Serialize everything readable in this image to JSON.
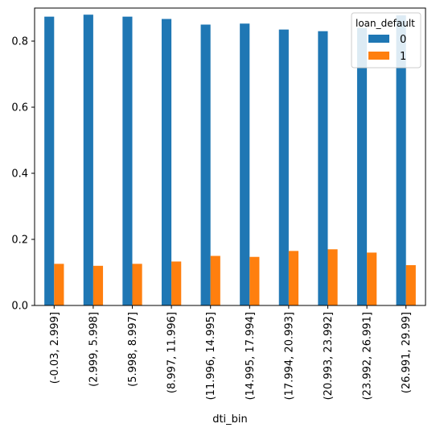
{
  "chart_data": {
    "type": "bar",
    "title": "",
    "xlabel": "dti_bin",
    "ylabel": "",
    "ylim": [
      0,
      0.9
    ],
    "yticks": [
      "0.0",
      "0.2",
      "0.4",
      "0.6",
      "0.8"
    ],
    "grid": false,
    "categories": [
      "(-0.03, 2.999]",
      "(2.999, 5.998]",
      "(5.998, 8.997]",
      "(8.997, 11.996]",
      "(11.996, 14.995]",
      "(14.995, 17.994]",
      "(17.994, 20.993]",
      "(20.993, 23.992]",
      "(23.992, 26.991]",
      "(26.991, 29.99]"
    ],
    "legend": {
      "title": "loan_default",
      "placement": "top-right"
    },
    "series": [
      {
        "name": "0",
        "color": "#1f77b4",
        "values": [
          0.874,
          0.88,
          0.874,
          0.867,
          0.85,
          0.853,
          0.835,
          0.83,
          0.84,
          0.878
        ]
      },
      {
        "name": "1",
        "color": "#ff7f0e",
        "values": [
          0.126,
          0.12,
          0.126,
          0.133,
          0.15,
          0.147,
          0.165,
          0.17,
          0.16,
          0.122
        ]
      }
    ]
  }
}
